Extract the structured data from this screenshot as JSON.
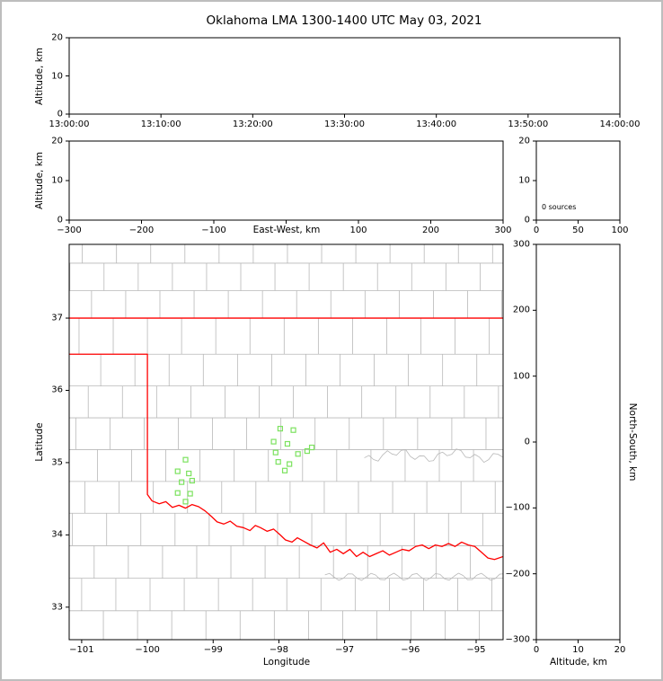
{
  "title": "Oklahoma LMA 1300-1400 UTC May 03, 2021",
  "colors": {
    "state_border": "#ff0000",
    "county_line": "#b8b8b8",
    "station": "#7ce25f",
    "axis": "#000000",
    "frame": "#bdbdbd",
    "background": "#ffffff"
  },
  "chart_data": [
    {
      "id": "time_height",
      "type": "scatter",
      "ylabel": "Altitude, km",
      "xtick_labels": [
        "13:00:00",
        "13:10:00",
        "13:20:00",
        "13:30:00",
        "13:40:00",
        "13:50:00",
        "14:00:00"
      ],
      "ytick_values": [
        0,
        10,
        20
      ],
      "ytick_labels": [
        "0",
        "10",
        "20"
      ],
      "ylim": [
        0,
        20
      ],
      "points": []
    },
    {
      "id": "ew_height",
      "type": "scatter",
      "xlabel": "East-West, km",
      "ylabel": "Altitude, km",
      "xtick_values": [
        -300,
        -200,
        -100,
        0,
        100,
        200,
        300
      ],
      "xtick_labels": [
        "−300",
        "−200",
        "−100",
        "",
        "100",
        "200",
        "300"
      ],
      "xlim": [
        -300,
        300
      ],
      "ytick_values": [
        0,
        10,
        20
      ],
      "ytick_labels": [
        "0",
        "10",
        "20"
      ],
      "ylim": [
        0,
        20
      ],
      "points": []
    },
    {
      "id": "alt_histogram",
      "type": "line",
      "annotation": "0 sources",
      "xtick_values": [
        0,
        50,
        100
      ],
      "xtick_labels": [
        "0",
        "50",
        "100"
      ],
      "xlim": [
        0,
        100
      ],
      "ytick_values": [
        0,
        10,
        20
      ],
      "ytick_labels": [
        "0",
        "10",
        "20"
      ],
      "ylim": [
        0,
        20
      ],
      "points": []
    },
    {
      "id": "plan_view",
      "type": "scatter",
      "xlabel": "Longitude",
      "ylabel": "Latitude",
      "xtick_values": [
        -101,
        -100,
        -99,
        -98,
        -97,
        -96,
        -95
      ],
      "xtick_labels": [
        "−101",
        "−100",
        "−99",
        "−98",
        "−97",
        "−96",
        "−95"
      ],
      "xlim": [
        -101.19,
        -94.59
      ],
      "ytick_values": [
        33,
        34,
        35,
        36,
        37
      ],
      "ytick_labels": [
        "33",
        "34",
        "35",
        "36",
        "37"
      ],
      "ylim": [
        32.55,
        38.02
      ],
      "marker": "green-open-square",
      "stations": [
        [
          -97.98,
          35.47
        ],
        [
          -97.78,
          35.45
        ],
        [
          -98.08,
          35.29
        ],
        [
          -97.87,
          35.26
        ],
        [
          -98.05,
          35.14
        ],
        [
          -97.71,
          35.12
        ],
        [
          -98.01,
          35.01
        ],
        [
          -97.84,
          34.98
        ],
        [
          -97.57,
          35.16
        ],
        [
          -97.5,
          35.21
        ],
        [
          -97.91,
          34.89
        ],
        [
          -99.42,
          35.04
        ],
        [
          -99.54,
          34.88
        ],
        [
          -99.37,
          34.85
        ],
        [
          -99.48,
          34.73
        ],
        [
          -99.32,
          34.75
        ],
        [
          -99.54,
          34.58
        ],
        [
          -99.35,
          34.57
        ],
        [
          -99.42,
          34.46
        ]
      ]
    },
    {
      "id": "ns_height",
      "type": "scatter",
      "xlabel": "Altitude, km",
      "ylabel": "North-South, km",
      "xtick_values": [
        0,
        10,
        20
      ],
      "xtick_labels": [
        "0",
        "10",
        "20"
      ],
      "xlim": [
        0,
        20
      ],
      "ytick_values": [
        300,
        200,
        100,
        0,
        -100,
        -200,
        -300
      ],
      "ytick_labels": [
        "300",
        "200",
        "100",
        "0",
        "−100",
        "−200",
        "−300"
      ],
      "ylim": [
        -300,
        300
      ],
      "points": []
    }
  ],
  "map_layers": {
    "oklahoma_north_lat": 37.0,
    "panhandle_south_lat": 36.5,
    "panhandle_east_lon": -100.0,
    "red_river_lon_lat": [
      [
        -100.0,
        34.56
      ],
      [
        -99.93,
        34.47
      ],
      [
        -99.82,
        34.43
      ],
      [
        -99.72,
        34.46
      ],
      [
        -99.62,
        34.38
      ],
      [
        -99.52,
        34.41
      ],
      [
        -99.42,
        34.37
      ],
      [
        -99.32,
        34.42
      ],
      [
        -99.22,
        34.39
      ],
      [
        -99.12,
        34.33
      ],
      [
        -99.02,
        34.25
      ],
      [
        -98.94,
        34.18
      ],
      [
        -98.84,
        34.15
      ],
      [
        -98.74,
        34.19
      ],
      [
        -98.64,
        34.12
      ],
      [
        -98.54,
        34.1
      ],
      [
        -98.44,
        34.06
      ],
      [
        -98.36,
        34.13
      ],
      [
        -98.28,
        34.1
      ],
      [
        -98.18,
        34.05
      ],
      [
        -98.08,
        34.08
      ],
      [
        -97.98,
        34.0
      ],
      [
        -97.9,
        33.93
      ],
      [
        -97.8,
        33.9
      ],
      [
        -97.72,
        33.96
      ],
      [
        -97.62,
        33.91
      ],
      [
        -97.52,
        33.86
      ],
      [
        -97.42,
        33.82
      ],
      [
        -97.32,
        33.89
      ],
      [
        -97.22,
        33.76
      ],
      [
        -97.12,
        33.8
      ],
      [
        -97.02,
        33.74
      ],
      [
        -96.92,
        33.8
      ],
      [
        -96.82,
        33.7
      ],
      [
        -96.72,
        33.76
      ],
      [
        -96.62,
        33.7
      ],
      [
        -96.52,
        33.74
      ],
      [
        -96.42,
        33.78
      ],
      [
        -96.32,
        33.72
      ],
      [
        -96.22,
        33.76
      ],
      [
        -96.12,
        33.8
      ],
      [
        -96.02,
        33.78
      ],
      [
        -95.92,
        33.84
      ],
      [
        -95.82,
        33.86
      ],
      [
        -95.72,
        33.81
      ],
      [
        -95.62,
        33.86
      ],
      [
        -95.52,
        33.84
      ],
      [
        -95.42,
        33.88
      ],
      [
        -95.32,
        33.84
      ],
      [
        -95.22,
        33.9
      ],
      [
        -95.12,
        33.86
      ],
      [
        -95.02,
        33.84
      ],
      [
        -94.92,
        33.76
      ],
      [
        -94.82,
        33.68
      ],
      [
        -94.72,
        33.66
      ],
      [
        -94.59,
        33.7
      ]
    ]
  }
}
